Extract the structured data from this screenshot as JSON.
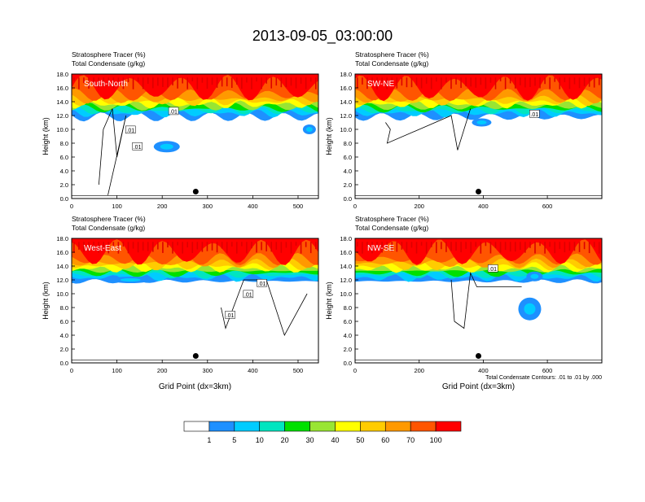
{
  "figure_title": "2013-09-05_03:00:00",
  "colors": {
    "levels": [
      "#ffffff",
      "#1e90ff",
      "#00ccff",
      "#00e5c0",
      "#00e000",
      "#99e533",
      "#ffff00",
      "#ffcc00",
      "#ff9900",
      "#ff5500",
      "#ff0000"
    ]
  },
  "chart_data": [
    {
      "type": "contour",
      "panel_label": "South-North",
      "title_line1": "Stratosphere Tracer   (%)",
      "title_line2": "Total Condensate   (g/kg)",
      "ylabel": "Height (km)",
      "xlabel": "",
      "xlim": [
        0,
        545
      ],
      "ylim": [
        0,
        18
      ],
      "xticks": [
        "0",
        "100",
        "200",
        "300",
        "400",
        "500"
      ],
      "xtick_values": [
        0,
        100,
        200,
        300,
        400,
        500
      ],
      "yticks": [
        "0.0",
        "2.0",
        "4.0",
        "6.0",
        "8.0",
        "10.0",
        "12.0",
        "14.0",
        "16.0",
        "18.0"
      ],
      "marker_x": 274,
      "marker_y": 1.0,
      "contour_labels": [
        ".01",
        ".01",
        ".01"
      ]
    },
    {
      "type": "contour",
      "panel_label": "SW-NE",
      "title_line1": "Stratosphere Tracer   (%)",
      "title_line2": "Total Condensate   (g/kg)",
      "ylabel": "Height (km)",
      "xlabel": "",
      "xlim": [
        0,
        770
      ],
      "ylim": [
        0,
        18
      ],
      "xticks": [
        "0",
        "200",
        "400",
        "600"
      ],
      "xtick_values": [
        0,
        200,
        400,
        600
      ],
      "yticks": [
        "0.0",
        "2.0",
        "4.0",
        "6.0",
        "8.0",
        "10.0",
        "12.0",
        "14.0",
        "16.0",
        "18.0"
      ],
      "marker_x": 385,
      "marker_y": 1.0,
      "contour_labels": [
        ".01"
      ]
    },
    {
      "type": "contour",
      "panel_label": "West-East",
      "title_line1": "Stratosphere Tracer   (%)",
      "title_line2": "Total Condensate   (g/kg)",
      "ylabel": "Height (km)",
      "xlabel": "Grid Point (dx=3km)",
      "xlim": [
        0,
        545
      ],
      "ylim": [
        0,
        18
      ],
      "xticks": [
        "0",
        "100",
        "200",
        "300",
        "400",
        "500"
      ],
      "xtick_values": [
        0,
        100,
        200,
        300,
        400,
        500
      ],
      "yticks": [
        "0.0",
        "2.0",
        "4.0",
        "6.0",
        "8.0",
        "10.0",
        "12.0",
        "14.0",
        "16.0",
        "18.0"
      ],
      "marker_x": 274,
      "marker_y": 1.0,
      "contour_labels": [
        ".01",
        ".01",
        ".01"
      ]
    },
    {
      "type": "contour",
      "panel_label": "NW-SE",
      "title_line1": "Stratosphere Tracer   (%)",
      "title_line2": "Total Condensate   (g/kg)",
      "ylabel": "Height (km)",
      "xlabel": "Grid Point (dx=3km)",
      "xlim": [
        0,
        770
      ],
      "ylim": [
        0,
        18
      ],
      "xticks": [
        "0",
        "200",
        "400",
        "600"
      ],
      "xtick_values": [
        0,
        200,
        400,
        600
      ],
      "yticks": [
        "0.0",
        "2.0",
        "4.0",
        "6.0",
        "8.0",
        "10.0",
        "12.0",
        "14.0",
        "16.0",
        "18.0"
      ],
      "marker_x": 385,
      "marker_y": 1.0,
      "contour_labels": [
        ".01"
      ],
      "contour_note": "Total Condensate Contours: .01 to .01 by .000"
    }
  ],
  "colorbar": {
    "labels": [
      "1",
      "5",
      "10",
      "20",
      "30",
      "40",
      "50",
      "60",
      "70",
      "100"
    ]
  }
}
